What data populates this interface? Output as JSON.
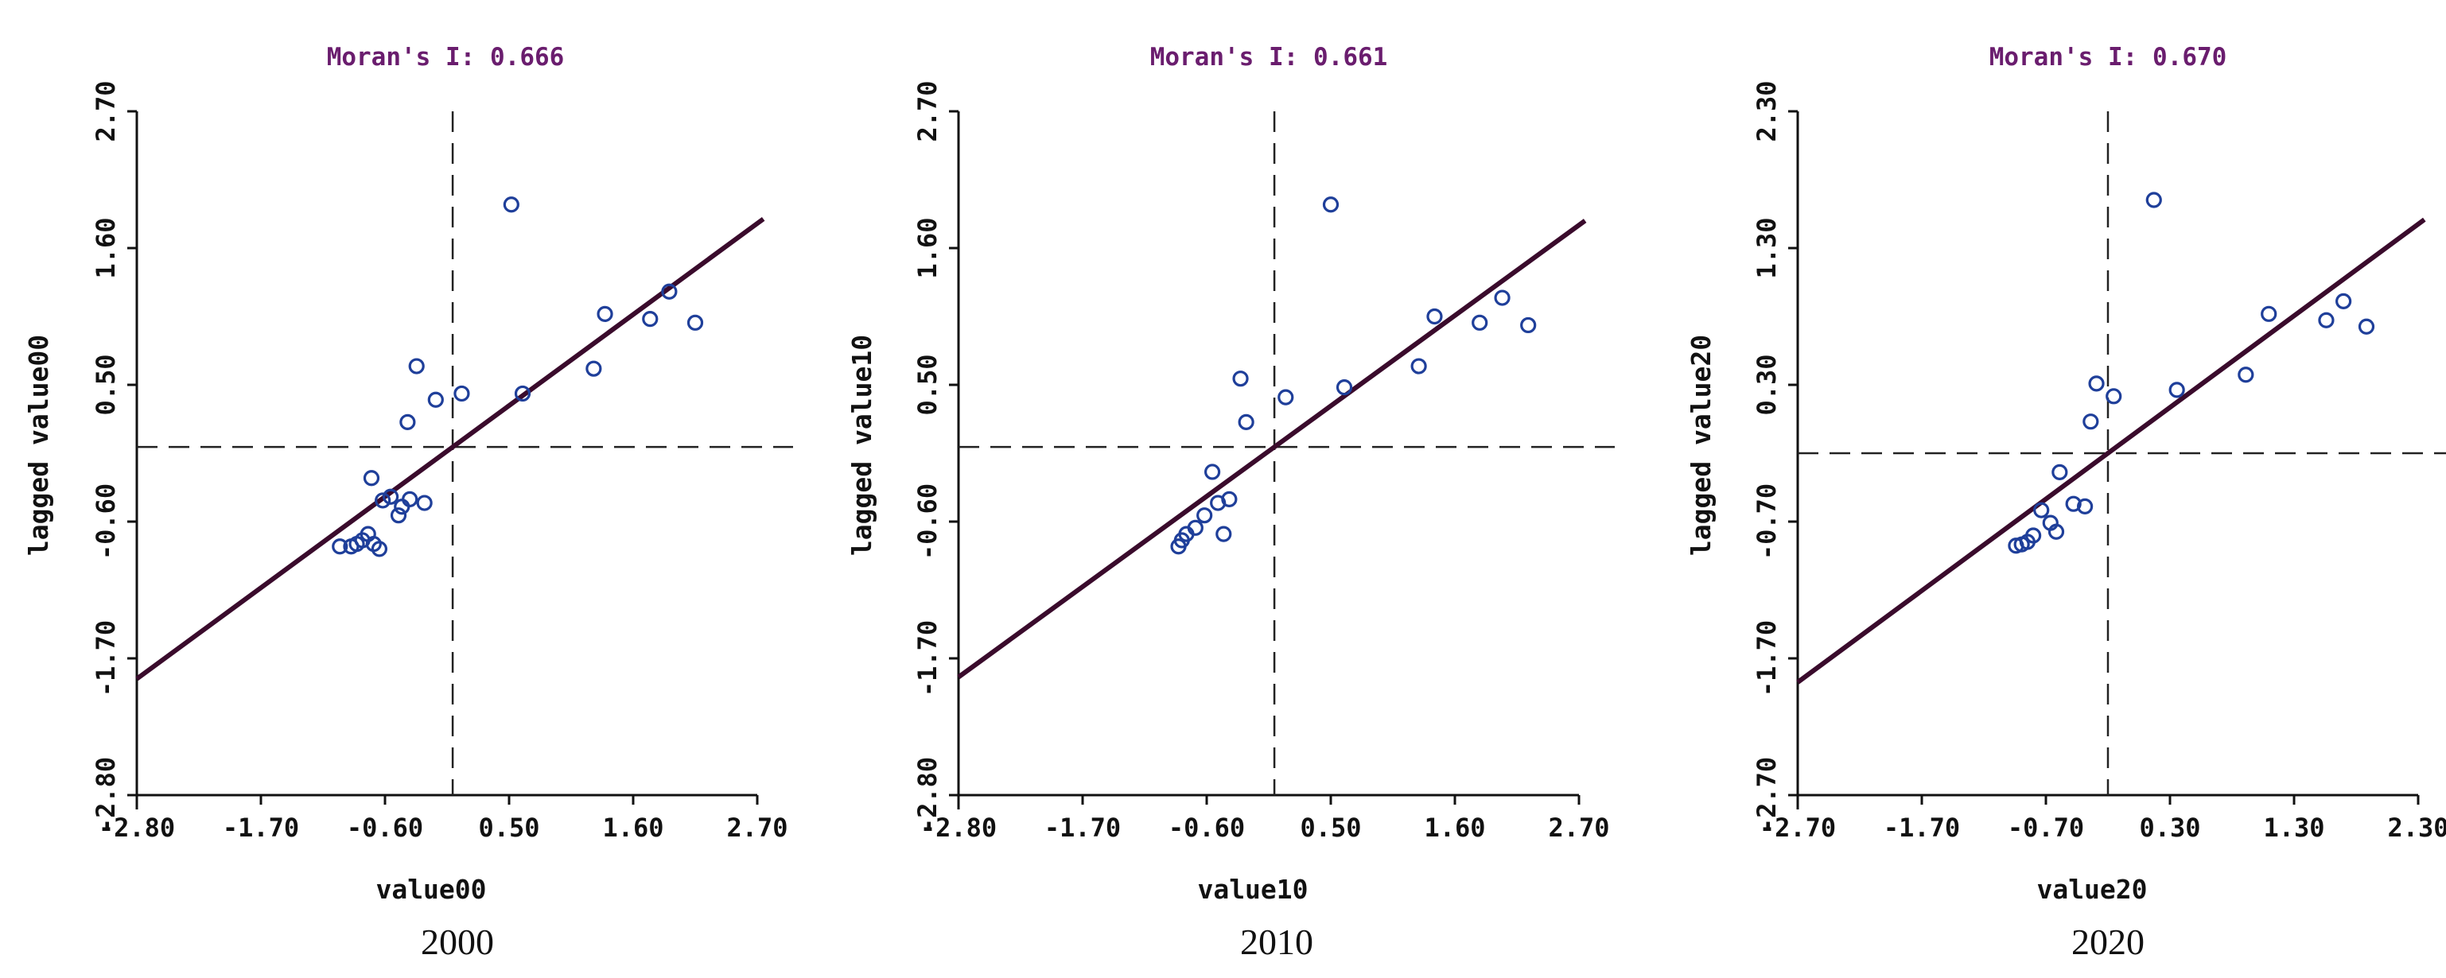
{
  "chart_data": [
    {
      "type": "scatter",
      "title": "Moran's I: 0.666",
      "xlabel": "value00",
      "ylabel": "lagged value00",
      "caption": "2000",
      "xlim": [
        -2.8,
        2.7
      ],
      "ylim": [
        -2.8,
        2.7
      ],
      "xticks": [
        "-2.80",
        "-1.70",
        "-0.60",
        "0.50",
        "1.60",
        "2.70"
      ],
      "yticks": [
        "-2.80",
        "-1.70",
        "-0.60",
        "0.50",
        "1.60",
        "2.70"
      ],
      "reference_lines": {
        "x": 0,
        "y": 0
      },
      "regression_slope": 0.666,
      "points": [
        {
          "x": -1.0,
          "y": -0.8
        },
        {
          "x": -0.9,
          "y": -0.8
        },
        {
          "x": -0.85,
          "y": -0.78
        },
        {
          "x": -0.8,
          "y": -0.75
        },
        {
          "x": -0.75,
          "y": -0.7
        },
        {
          "x": -0.7,
          "y": -0.78
        },
        {
          "x": -0.65,
          "y": -0.82
        },
        {
          "x": -0.72,
          "y": -0.25
        },
        {
          "x": -0.62,
          "y": -0.43
        },
        {
          "x": -0.55,
          "y": -0.4
        },
        {
          "x": -0.48,
          "y": -0.55
        },
        {
          "x": -0.45,
          "y": -0.48
        },
        {
          "x": -0.38,
          "y": -0.42
        },
        {
          "x": -0.32,
          "y": 0.65
        },
        {
          "x": -0.25,
          "y": -0.45
        },
        {
          "x": -0.15,
          "y": 0.38
        },
        {
          "x": -0.4,
          "y": 0.2
        },
        {
          "x": 0.08,
          "y": 0.43
        },
        {
          "x": 0.52,
          "y": 1.95
        },
        {
          "x": 0.62,
          "y": 0.43
        },
        {
          "x": 1.25,
          "y": 0.63
        },
        {
          "x": 1.35,
          "y": 1.07
        },
        {
          "x": 1.75,
          "y": 1.03
        },
        {
          "x": 1.92,
          "y": 1.25
        },
        {
          "x": 2.15,
          "y": 1.0
        }
      ]
    },
    {
      "type": "scatter",
      "title": "Moran's I: 0.661",
      "xlabel": "value10",
      "ylabel": "lagged value10",
      "caption": "2010",
      "xlim": [
        -2.8,
        2.7
      ],
      "ylim": [
        -2.8,
        2.7
      ],
      "xticks": [
        "-2.80",
        "-1.70",
        "-0.60",
        "0.50",
        "1.60",
        "2.70"
      ],
      "yticks": [
        "-2.80",
        "-1.70",
        "-0.60",
        "0.50",
        "1.60",
        "2.70"
      ],
      "reference_lines": {
        "x": 0,
        "y": 0
      },
      "regression_slope": 0.661,
      "points": [
        {
          "x": -0.85,
          "y": -0.8
        },
        {
          "x": -0.82,
          "y": -0.75
        },
        {
          "x": -0.78,
          "y": -0.7
        },
        {
          "x": -0.7,
          "y": -0.65
        },
        {
          "x": -0.62,
          "y": -0.55
        },
        {
          "x": -0.55,
          "y": -0.2
        },
        {
          "x": -0.5,
          "y": -0.45
        },
        {
          "x": -0.45,
          "y": -0.7
        },
        {
          "x": -0.4,
          "y": -0.42
        },
        {
          "x": -0.3,
          "y": 0.55
        },
        {
          "x": -0.25,
          "y": 0.2
        },
        {
          "x": 0.1,
          "y": 0.4
        },
        {
          "x": 0.5,
          "y": 1.95
        },
        {
          "x": 0.62,
          "y": 0.48
        },
        {
          "x": 1.28,
          "y": 0.65
        },
        {
          "x": 1.42,
          "y": 1.05
        },
        {
          "x": 1.82,
          "y": 1.0
        },
        {
          "x": 2.02,
          "y": 1.2
        },
        {
          "x": 2.25,
          "y": 0.98
        }
      ]
    },
    {
      "type": "scatter",
      "title": "Moran's I: 0.670",
      "xlabel": "value20",
      "ylabel": "lagged value20",
      "caption": "2020",
      "xlim": [
        -2.7,
        2.7
      ],
      "ylim": [
        -2.7,
        2.7
      ],
      "xticks": [
        "-2.70",
        "-1.70",
        "-0.70",
        "0.30",
        "1.30",
        "2.30"
      ],
      "yticks": [
        "-2.70",
        "-1.70",
        "-0.70",
        "0.30",
        "1.30",
        "2.30"
      ],
      "reference_lines": {
        "x": 0,
        "y": 0
      },
      "regression_slope": 0.67,
      "points": [
        {
          "x": -0.8,
          "y": -0.73
        },
        {
          "x": -0.75,
          "y": -0.72
        },
        {
          "x": -0.7,
          "y": -0.7
        },
        {
          "x": -0.65,
          "y": -0.65
        },
        {
          "x": -0.58,
          "y": -0.45
        },
        {
          "x": -0.5,
          "y": -0.55
        },
        {
          "x": -0.45,
          "y": -0.62
        },
        {
          "x": -0.42,
          "y": -0.15
        },
        {
          "x": -0.3,
          "y": -0.4
        },
        {
          "x": -0.2,
          "y": -0.42
        },
        {
          "x": -0.15,
          "y": 0.25
        },
        {
          "x": -0.1,
          "y": 0.55
        },
        {
          "x": 0.05,
          "y": 0.45
        },
        {
          "x": 0.4,
          "y": 2.0
        },
        {
          "x": 0.6,
          "y": 0.5
        },
        {
          "x": 1.2,
          "y": 0.62
        },
        {
          "x": 1.4,
          "y": 1.1
        },
        {
          "x": 1.9,
          "y": 1.05
        },
        {
          "x": 2.05,
          "y": 1.2
        },
        {
          "x": 2.25,
          "y": 1.0
        }
      ]
    }
  ]
}
